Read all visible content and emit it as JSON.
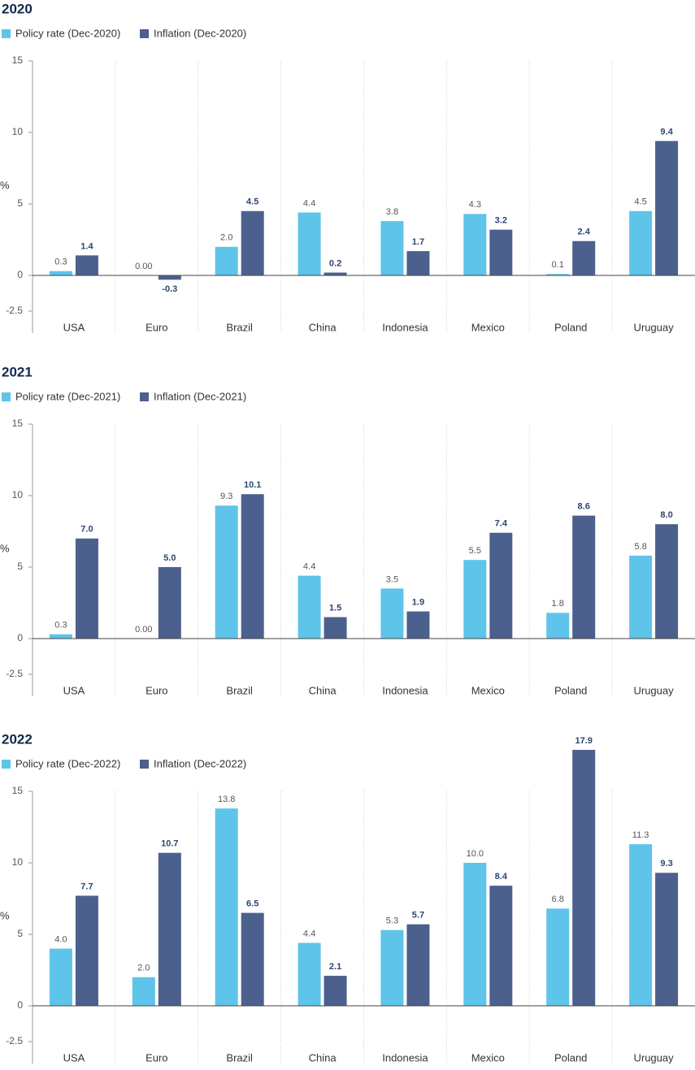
{
  "chart_data": [
    {
      "type": "bar",
      "title": "2020",
      "y_label": "%",
      "categories": [
        "USA",
        "Euro",
        "Brazil",
        "China",
        "Indonesia",
        "Mexico",
        "Poland",
        "Uruguay"
      ],
      "series": [
        {
          "name": "Policy rate (Dec-2020)",
          "color": "#5ec4ea",
          "values": [
            0.3,
            0,
            2.0,
            4.4,
            3.8,
            4.3,
            0.1,
            4.5
          ],
          "value_labels": [
            "0.3",
            "0.00",
            "2.0",
            "4.4",
            "3.8",
            "4.3",
            "0.1",
            "4.5"
          ]
        },
        {
          "name": "Inflation (Dec-2020)",
          "color": "#4c608d",
          "values": [
            1.4,
            -0.3,
            4.5,
            0.2,
            1.7,
            3.2,
            2.4,
            9.4
          ],
          "value_labels": [
            "1.4",
            "-0.3",
            "4.5",
            "0.2",
            "1.7",
            "3.2",
            "2.4",
            "9.4"
          ]
        }
      ],
      "ylim": [
        -2.5,
        15
      ],
      "yticks": [
        -2.5,
        0,
        5,
        10,
        15
      ]
    },
    {
      "type": "bar",
      "title": "2021",
      "y_label": "%",
      "categories": [
        "USA",
        "Euro",
        "Brazil",
        "China",
        "Indonesia",
        "Mexico",
        "Poland",
        "Uruguay"
      ],
      "series": [
        {
          "name": "Policy rate (Dec-2021)",
          "color": "#5ec4ea",
          "values": [
            0.3,
            0,
            9.3,
            4.4,
            3.5,
            5.5,
            1.8,
            5.8
          ],
          "value_labels": [
            "0.3",
            "0.00",
            "9.3",
            "4.4",
            "3.5",
            "5.5",
            "1.8",
            "5.8"
          ]
        },
        {
          "name": "Inflation (Dec-2021)",
          "color": "#4c608d",
          "values": [
            7.0,
            5.0,
            10.1,
            1.5,
            1.9,
            7.4,
            8.6,
            8.0
          ],
          "value_labels": [
            "7.0",
            "5.0",
            "10.1",
            "1.5",
            "1.9",
            "7.4",
            "8.6",
            "8.0"
          ]
        }
      ],
      "ylim": [
        -2.5,
        15
      ],
      "yticks": [
        -2.5,
        0,
        5,
        10,
        15
      ]
    },
    {
      "type": "bar",
      "title": "2022",
      "y_label": "%",
      "categories": [
        "USA",
        "Euro",
        "Brazil",
        "China",
        "Indonesia",
        "Mexico",
        "Poland",
        "Uruguay"
      ],
      "series": [
        {
          "name": "Policy rate (Dec-2022)",
          "color": "#5ec4ea",
          "values": [
            4.0,
            2.0,
            13.8,
            4.4,
            5.3,
            10.0,
            6.8,
            11.3
          ],
          "value_labels": [
            "4.0",
            "2.0",
            "13.8",
            "4.4",
            "5.3",
            "10.0",
            "6.8",
            "11.3"
          ]
        },
        {
          "name": "Inflation (Dec-2022)",
          "color": "#4c608d",
          "values": [
            7.7,
            10.7,
            6.5,
            2.1,
            5.7,
            8.4,
            17.9,
            9.3
          ],
          "value_labels": [
            "7.7",
            "10.7",
            "6.5",
            "2.1",
            "5.7",
            "8.4",
            "17.9",
            "9.3"
          ]
        }
      ],
      "ylim": [
        -2.5,
        15
      ],
      "yticks": [
        -2.5,
        0,
        5,
        10,
        15
      ]
    }
  ]
}
